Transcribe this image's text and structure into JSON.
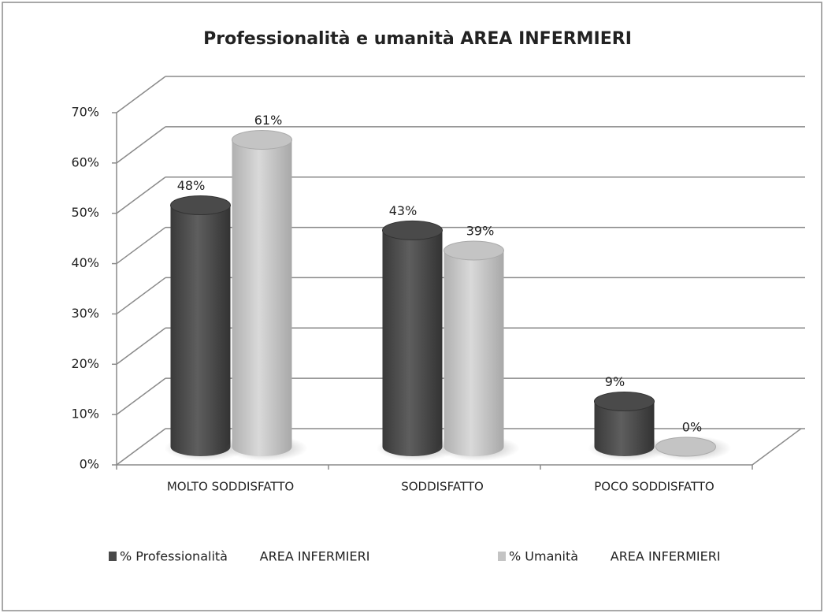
{
  "chart_data": {
    "type": "bar3d",
    "title": "Professionalità e umanità AREA INFERMIERI",
    "categories": [
      "MOLTO SODDISFATTO",
      "SODDISFATTO",
      "POCO SODDISFATTO"
    ],
    "series": [
      {
        "name": "% Professionalità        AREA INFERMIERI",
        "color": "#4a4a4a",
        "values": [
          48,
          43,
          9
        ],
        "value_labels": [
          "48%",
          "43%",
          "9%"
        ]
      },
      {
        "name": "% Umanità        AREA INFERMIERI",
        "color": "#c4c4c4",
        "values": [
          61,
          39,
          0
        ],
        "value_labels": [
          "61%",
          "39%",
          "0%"
        ]
      }
    ],
    "ylim": [
      0,
      70
    ],
    "yticks": [
      {
        "value": 0,
        "label": "0%"
      },
      {
        "value": 10,
        "label": "10%"
      },
      {
        "value": 20,
        "label": "20%"
      },
      {
        "value": 30,
        "label": "30%"
      },
      {
        "value": 40,
        "label": "40%"
      },
      {
        "value": 50,
        "label": "50%"
      },
      {
        "value": 60,
        "label": "60%"
      },
      {
        "value": 70,
        "label": "70%"
      }
    ],
    "grid": true,
    "legend": "bottom"
  }
}
